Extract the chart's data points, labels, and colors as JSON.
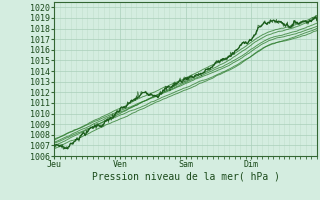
{
  "title": "",
  "xlabel": "Pression niveau de la mer( hPa )",
  "ylabel": "",
  "ylim": [
    1006,
    1020.5
  ],
  "yticks": [
    1006,
    1007,
    1008,
    1009,
    1010,
    1011,
    1012,
    1013,
    1014,
    1015,
    1016,
    1017,
    1018,
    1019,
    1020
  ],
  "xtick_labels": [
    "Jeu",
    "Ven",
    "Sam",
    "Dim"
  ],
  "xtick_positions": [
    0,
    96,
    192,
    288
  ],
  "xlim": [
    0,
    384
  ],
  "background_color": "#d4ede0",
  "grid_color_major": "#aacfba",
  "grid_color_minor": "#c2e0ce",
  "line_color_main": "#1a5c1a",
  "line_color_smooth": "#2a7a2a",
  "axis_color": "#336633",
  "font_color": "#1a4a1a",
  "total_steps": 384,
  "n_points": 385
}
